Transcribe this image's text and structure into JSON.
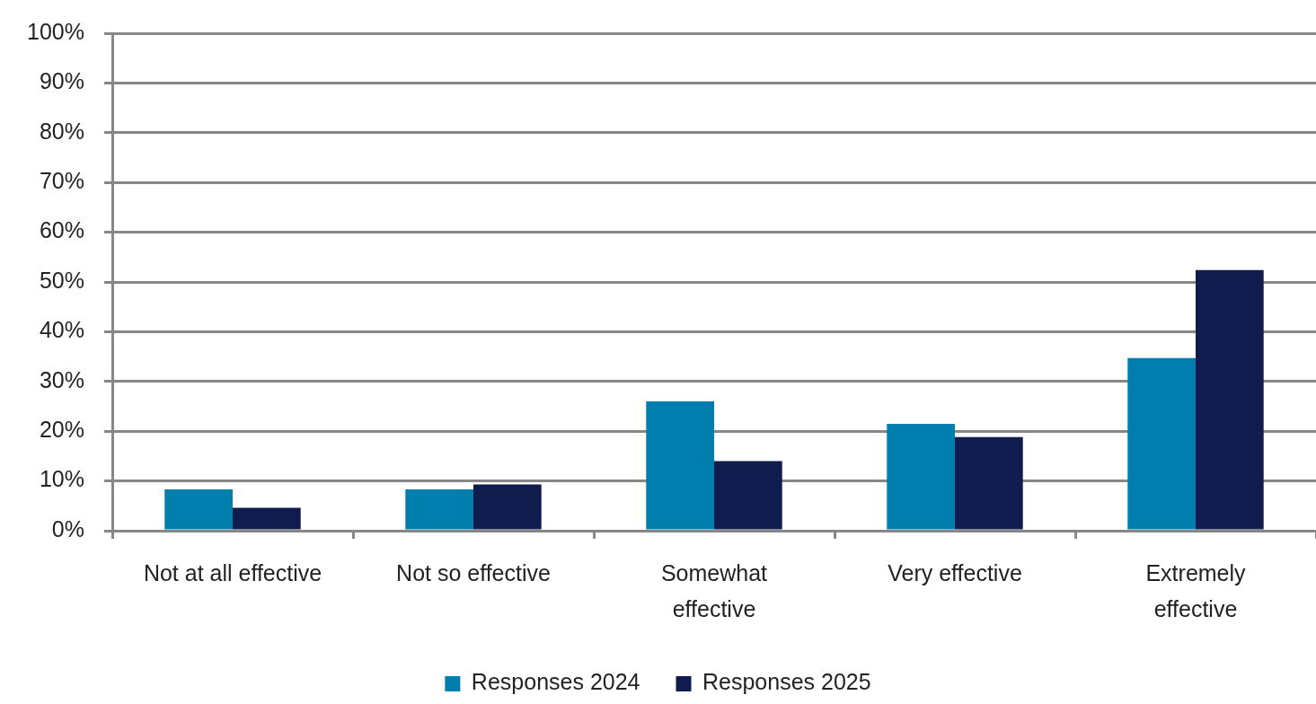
{
  "chart_data": {
    "type": "bar",
    "categories": [
      "Not at all effective",
      "Not so effective",
      "Somewhat\neffective",
      "Very effective",
      "Extremely\neffective"
    ],
    "series": [
      {
        "name": "Responses 2024",
        "color": "#007eae",
        "values": [
          8.3,
          8.3,
          26.0,
          21.5,
          34.7
        ]
      },
      {
        "name": "Responses 2025",
        "color": "#111c4e",
        "values": [
          4.6,
          9.3,
          14.0,
          18.8,
          52.4
        ]
      }
    ],
    "ylim": [
      0,
      100
    ],
    "yticks": [
      {
        "value": 0,
        "label": "0%"
      },
      {
        "value": 10,
        "label": "10%"
      },
      {
        "value": 20,
        "label": "20%"
      },
      {
        "value": 30,
        "label": "30%"
      },
      {
        "value": 40,
        "label": "40%"
      },
      {
        "value": 50,
        "label": "50%"
      },
      {
        "value": 60,
        "label": "60%"
      },
      {
        "value": 70,
        "label": "70%"
      },
      {
        "value": 80,
        "label": "80%"
      },
      {
        "value": 90,
        "label": "90%"
      },
      {
        "value": 100,
        "label": "100%"
      }
    ],
    "grid": "y",
    "legend": "bottom"
  }
}
